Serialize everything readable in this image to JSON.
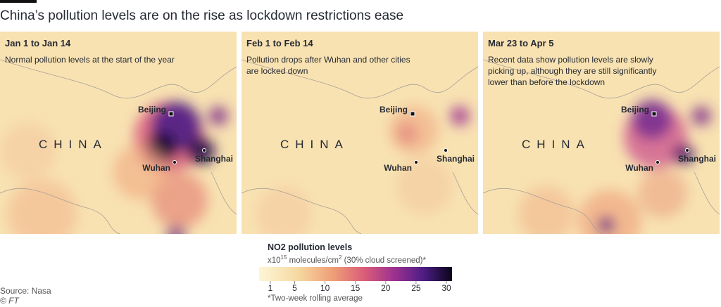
{
  "title": "China’s pollution levels are on the rise as lockdown restrictions ease",
  "panels": [
    {
      "period": "Jan 1 to Jan 14",
      "caption": [
        "Normal pollution levels at the start of the year"
      ],
      "country": "CHINA",
      "cities": [
        "Beijing",
        "Wuhan",
        "Shanghai"
      ]
    },
    {
      "period": "Feb 1 to Feb 14",
      "caption": [
        "Pollution drops after Wuhan and other cities",
        "are locked down"
      ],
      "country": "CHINA",
      "cities": [
        "Beijing",
        "Wuhan",
        "Shanghai"
      ]
    },
    {
      "period": "Mar 23 to Apr 5",
      "caption": [
        "Recent data show pollution levels are slowly",
        "picking up, although they are still significantly",
        "lower than before the lockdown"
      ],
      "country": "CHINA",
      "cities": [
        "Beijing",
        "Wuhan",
        "Shanghai"
      ]
    }
  ],
  "legend": {
    "title": "NO2 pollution levels",
    "unit": [
      "x10",
      "15",
      " molecules/cm",
      "2",
      " (30% cloud screened)*"
    ],
    "ticks": [
      1,
      5,
      10,
      15,
      20,
      25,
      30
    ],
    "note": "*Two-week rolling average"
  },
  "source": "Source: Nasa",
  "credit": "© FT"
}
